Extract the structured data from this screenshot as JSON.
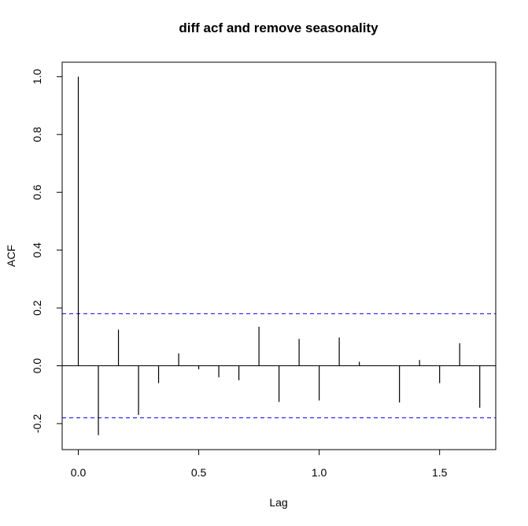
{
  "chart_data": {
    "type": "bar",
    "title": "diff acf and remove seasonality",
    "xlabel": "Lag",
    "ylabel": "ACF",
    "xlim": [
      -0.067,
      1.733
    ],
    "ylim": [
      -0.29,
      1.05
    ],
    "x_ticks": [
      {
        "value": 0.0,
        "label": "0.0"
      },
      {
        "value": 0.5,
        "label": "0.5"
      },
      {
        "value": 1.0,
        "label": "1.0"
      },
      {
        "value": 1.5,
        "label": "1.5"
      }
    ],
    "y_ticks": [
      {
        "value": -0.2,
        "label": "-0.2"
      },
      {
        "value": 0.0,
        "label": "0.0"
      },
      {
        "value": 0.2,
        "label": "0.2"
      },
      {
        "value": 0.4,
        "label": "0.4"
      },
      {
        "value": 0.6,
        "label": "0.6"
      },
      {
        "value": 0.8,
        "label": "0.8"
      },
      {
        "value": 1.0,
        "label": "1.0"
      }
    ],
    "lags": [
      0,
      0.0833,
      0.1667,
      0.25,
      0.3333,
      0.4167,
      0.5,
      0.5833,
      0.6667,
      0.75,
      0.8333,
      0.9167,
      1.0,
      1.0833,
      1.1667,
      1.25,
      1.3333,
      1.4167,
      1.5,
      1.5833,
      1.6667
    ],
    "values": [
      1.0,
      -0.24,
      0.125,
      -0.17,
      -0.06,
      0.043,
      -0.012,
      -0.04,
      -0.05,
      0.135,
      -0.125,
      0.093,
      -0.12,
      0.098,
      0.014,
      0.0,
      -0.127,
      0.02,
      -0.06,
      0.078,
      -0.145
    ],
    "confidence_bounds": [
      0.18,
      -0.18
    ],
    "confidence_color": "#0000ff",
    "bar_color": "#000000",
    "grid": false
  }
}
